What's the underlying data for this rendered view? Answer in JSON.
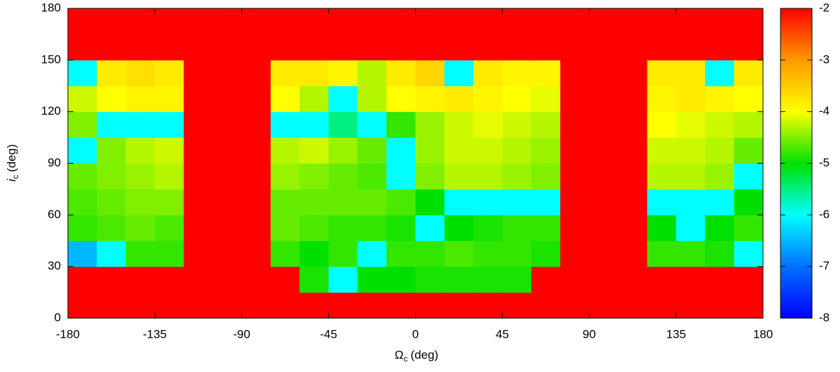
{
  "chart_data": {
    "type": "heatmap",
    "x_label": {
      "symbol": "Ω",
      "subscript": "c",
      "unit": "(deg)"
    },
    "y_label": {
      "symbol": "i",
      "subscript": "c",
      "unit": "(deg)"
    },
    "xlim": [
      -180,
      180
    ],
    "xticks": [
      -180,
      -135,
      -90,
      -45,
      0,
      45,
      90,
      135,
      180
    ],
    "ylim": [
      0,
      180
    ],
    "yticks": [
      0,
      30,
      60,
      90,
      120,
      150,
      180
    ],
    "zlim": [
      -8,
      -2
    ],
    "zticks": [
      -2,
      -3,
      -4,
      -5,
      -6,
      -7,
      -8
    ],
    "colors": [
      "#0000ff",
      "#0070ff",
      "#00ffff",
      "#00e000",
      "#ffff00",
      "#ff9900",
      "#ff0000"
    ],
    "x": [
      -172.5,
      -157.5,
      -142.5,
      -127.5,
      -112.5,
      -97.5,
      -82.5,
      -67.5,
      -52.5,
      -37.5,
      -22.5,
      -7.5,
      7.5,
      22.5,
      37.5,
      52.5,
      67.5,
      82.5,
      97.5,
      112.5,
      127.5,
      142.5,
      157.5,
      172.5
    ],
    "y": [
      7.5,
      22.5,
      37.5,
      52.5,
      67.5,
      82.5,
      97.5,
      112.5,
      127.5,
      142.5,
      157.5,
      172.5
    ],
    "z": [
      [
        -2,
        -2,
        -2,
        -2,
        -2,
        -2,
        -2,
        -2,
        -2,
        -2,
        -2,
        -2,
        -2,
        -2,
        -2,
        -2,
        -2,
        -2,
        -2,
        -2,
        -2,
        -2,
        -2,
        -2
      ],
      [
        -2,
        -2,
        -2,
        -2,
        -2,
        -2,
        -2,
        -2,
        -4.9,
        -6,
        -5,
        -5,
        -4.9,
        -4.9,
        -4.9,
        -4.9,
        -2,
        -2,
        -2,
        -2,
        -2,
        -2,
        -2,
        -2
      ],
      [
        -6.5,
        -6,
        -4.8,
        -4.8,
        -2,
        -2,
        -2,
        -4.8,
        -5,
        -4.8,
        -6,
        -4.8,
        -4.8,
        -4.7,
        -4.8,
        -4.8,
        -4.9,
        -2,
        -2,
        -2,
        -4.8,
        -4.8,
        -4.9,
        -6
      ],
      [
        -4.8,
        -4.7,
        -4.6,
        -4.7,
        -2,
        -2,
        -2,
        -4.6,
        -4.7,
        -4.8,
        -4.8,
        -4.9,
        -6,
        -5,
        -4.9,
        -4.8,
        -4.8,
        -2,
        -2,
        -2,
        -5,
        -6,
        -5,
        -4.8
      ],
      [
        -4.7,
        -4.6,
        -4.5,
        -4.5,
        -2,
        -2,
        -2,
        -4.6,
        -4.6,
        -4.6,
        -4.6,
        -4.7,
        -5,
        -6,
        -6,
        -6,
        -6,
        -2,
        -2,
        -2,
        -6,
        -6,
        -6,
        -5
      ],
      [
        -4.6,
        -4.5,
        -4.4,
        -4.3,
        -2,
        -2,
        -2,
        -4.4,
        -4.5,
        -4.6,
        -4.7,
        -6,
        -4.5,
        -4.3,
        -4.3,
        -4.4,
        -4.5,
        -2,
        -2,
        -2,
        -4.3,
        -4.3,
        -4.4,
        -6
      ],
      [
        -6,
        -4.5,
        -4.3,
        -4.2,
        -2,
        -2,
        -2,
        -4.3,
        -4.2,
        -4.4,
        -4.6,
        -6,
        -4.4,
        -4.2,
        -4.2,
        -4.3,
        -4.4,
        -2,
        -2,
        -2,
        -4.2,
        -4.2,
        -4.3,
        -4.6
      ],
      [
        -4.5,
        -6,
        -6,
        -6,
        -2,
        -2,
        -2,
        -6,
        -6,
        -5.5,
        -6,
        -4.8,
        -4.4,
        -4.2,
        -4.1,
        -4.2,
        -4.3,
        -2,
        -2,
        -2,
        -4,
        -4.1,
        -4.2,
        -4.3
      ],
      [
        -4.2,
        -4,
        -3.9,
        -3.9,
        -2,
        -2,
        -2,
        -4,
        -4.3,
        -6,
        -4.3,
        -4,
        -3.9,
        -3.8,
        -3.9,
        -4,
        -4.1,
        -2,
        -2,
        -2,
        -3.9,
        -3.8,
        -3.9,
        -4
      ],
      [
        -6,
        -3.8,
        -3.7,
        -3.8,
        -2,
        -2,
        -2,
        -3.8,
        -3.8,
        -3.9,
        -4.3,
        -3.8,
        -3.6,
        -6,
        -3.8,
        -3.9,
        -3.9,
        -2,
        -2,
        -2,
        -3.8,
        -3.8,
        -6,
        -3.8
      ],
      [
        -2,
        -2,
        -2,
        -2,
        -2,
        -2,
        -2,
        -2,
        -2,
        -2,
        -2,
        -2,
        -2,
        -2,
        -2,
        -2,
        -2,
        -2,
        -2,
        -2,
        -2,
        -2,
        -2,
        -2
      ],
      [
        -2,
        -2,
        -2,
        -2,
        -2,
        -2,
        -2,
        -2,
        -2,
        -2,
        -2,
        -2,
        -2,
        -2,
        -2,
        -2,
        -2,
        -2,
        -2,
        -2,
        -2,
        -2,
        -2,
        -2
      ]
    ]
  }
}
